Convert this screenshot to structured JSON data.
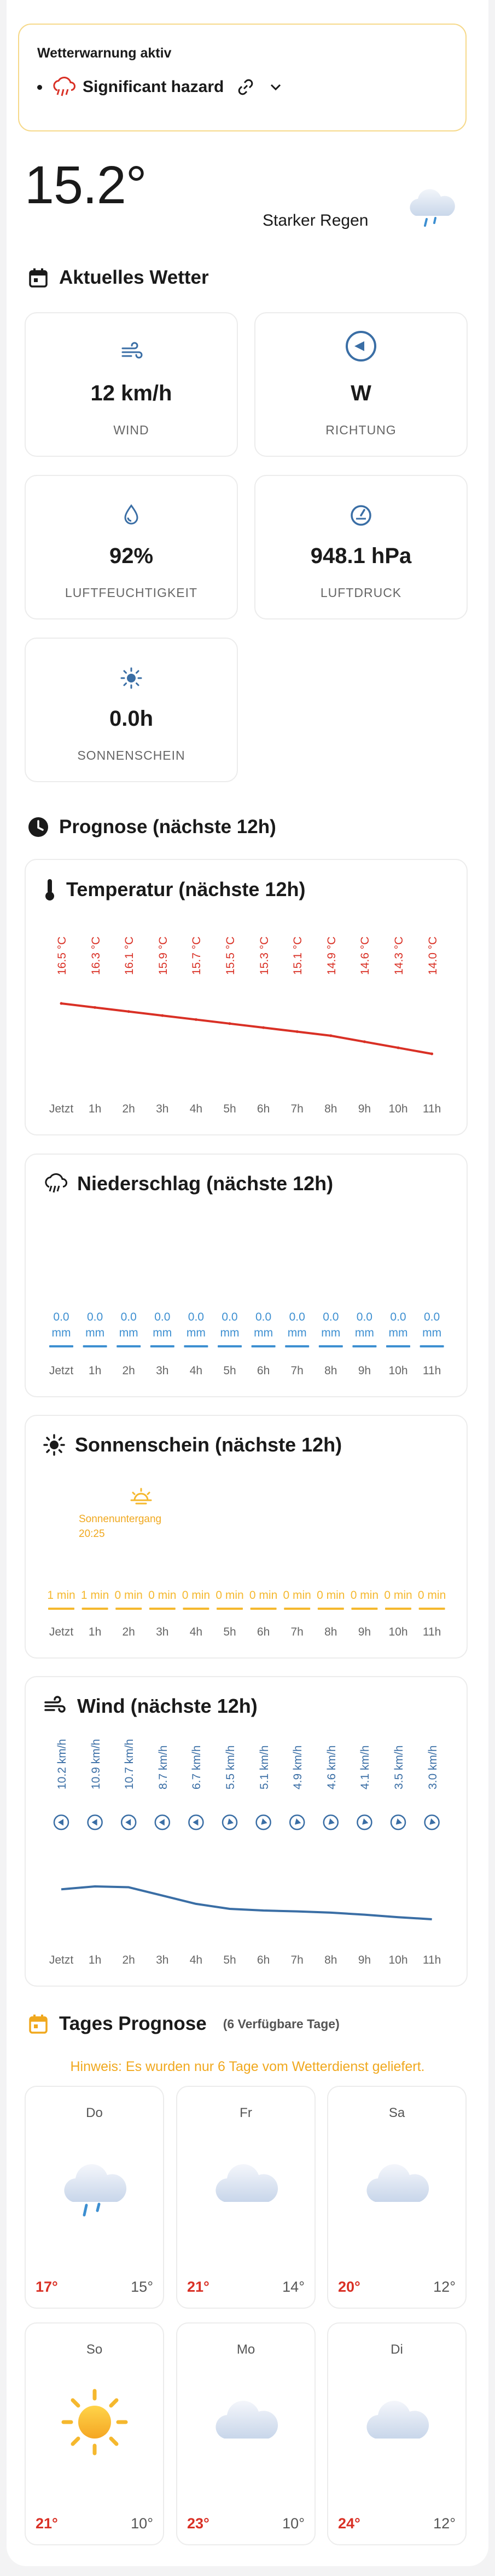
{
  "warning": {
    "title": "Wetterwarnung aktiv",
    "label": "Significant hazard"
  },
  "current": {
    "temperature": "15.2°",
    "condition": "Starker Regen"
  },
  "section_current": "Aktuelles Wetter",
  "stats": {
    "wind": {
      "value": "12 km/h",
      "label": "WIND"
    },
    "direction": {
      "value": "W",
      "label": "RICHTUNG"
    },
    "humidity": {
      "value": "92%",
      "label": "LUFTFEUCHTIGKEIT"
    },
    "pressure": {
      "value": "948.1 hPa",
      "label": "LUFTDRUCK"
    },
    "sunshine": {
      "value": "0.0h",
      "label": "SONNENSCHEIN"
    }
  },
  "section_forecast": "Prognose (nächste 12h)",
  "hours": [
    "Jetzt",
    "1h",
    "2h",
    "3h",
    "4h",
    "5h",
    "6h",
    "7h",
    "8h",
    "9h",
    "10h",
    "11h"
  ],
  "temp_card": {
    "title": "Temperatur (nächste 12h)",
    "labels": [
      "16.5 °C",
      "16.3 °C",
      "16.1 °C",
      "15.9 °C",
      "15.7 °C",
      "15.5 °C",
      "15.3 °C",
      "15.1 °C",
      "14.9 °C",
      "14.6 °C",
      "14.3 °C",
      "14.0 °C"
    ]
  },
  "precip_card": {
    "title": "Niederschlag (nächste 12h)",
    "values": [
      "0.0",
      "0.0",
      "0.0",
      "0.0",
      "0.0",
      "0.0",
      "0.0",
      "0.0",
      "0.0",
      "0.0",
      "0.0",
      "0.0"
    ],
    "unit": "mm"
  },
  "sun_card": {
    "title": "Sonnenschein (nächste 12h)",
    "sunset_label": "Sonnenuntergang",
    "sunset_time": "20:25",
    "labels": [
      "1 min",
      "1 min",
      "0 min",
      "0 min",
      "0 min",
      "0 min",
      "0 min",
      "0 min",
      "0 min",
      "0 min",
      "0 min",
      "0 min"
    ]
  },
  "wind_card": {
    "title": "Wind (nächste 12h)",
    "labels": [
      "10.2 km/h",
      "10.9 km/h",
      "10.7 km/h",
      "8.7 km/h",
      "6.7 km/h",
      "5.5 km/h",
      "5.1 km/h",
      "4.9 km/h",
      "4.6 km/h",
      "4.1 km/h",
      "3.5 km/h",
      "3.0 km/h"
    ]
  },
  "section_daily": "Tages Prognose",
  "daily_sub": "(6 Verfügbare Tage)",
  "daily_note": "Hinweis: Es wurden nur 6 Tage vom Wetterdienst geliefert.",
  "days": [
    {
      "name": "Do",
      "max": "17°",
      "min": "15°",
      "icon": "rain-cloud-icon"
    },
    {
      "name": "Fr",
      "max": "21°",
      "min": "14°",
      "icon": "cloud-icon"
    },
    {
      "name": "Sa",
      "max": "20°",
      "min": "12°",
      "icon": "cloud-icon"
    },
    {
      "name": "So",
      "max": "21°",
      "min": "10°",
      "icon": "sun-icon"
    },
    {
      "name": "Mo",
      "max": "23°",
      "min": "10°",
      "icon": "cloud-icon"
    },
    {
      "name": "Di",
      "max": "24°",
      "min": "12°",
      "icon": "cloud-icon"
    }
  ],
  "chart_data": [
    {
      "type": "line",
      "title": "Temperatur (nächste 12h)",
      "x": [
        "Jetzt",
        "1h",
        "2h",
        "3h",
        "4h",
        "5h",
        "6h",
        "7h",
        "8h",
        "9h",
        "10h",
        "11h"
      ],
      "series": [
        {
          "values": [
            16.5,
            16.3,
            16.1,
            15.9,
            15.7,
            15.5,
            15.3,
            15.1,
            14.9,
            14.6,
            14.3,
            14.0
          ]
        }
      ],
      "unit": "°C",
      "color": "#d93025"
    },
    {
      "type": "bar",
      "title": "Niederschlag (nächste 12h)",
      "categories": [
        "Jetzt",
        "1h",
        "2h",
        "3h",
        "4h",
        "5h",
        "6h",
        "7h",
        "8h",
        "9h",
        "10h",
        "11h"
      ],
      "values": [
        0,
        0,
        0,
        0,
        0,
        0,
        0,
        0,
        0,
        0,
        0,
        0
      ],
      "unit": "mm",
      "color": "#3d8fd1"
    },
    {
      "type": "bar",
      "title": "Sonnenschein (nächste 12h)",
      "categories": [
        "Jetzt",
        "1h",
        "2h",
        "3h",
        "4h",
        "5h",
        "6h",
        "7h",
        "8h",
        "9h",
        "10h",
        "11h"
      ],
      "values": [
        1,
        1,
        0,
        0,
        0,
        0,
        0,
        0,
        0,
        0,
        0,
        0
      ],
      "unit": "min",
      "color": "#f5b82e"
    },
    {
      "type": "line",
      "title": "Wind (nächste 12h)",
      "x": [
        "Jetzt",
        "1h",
        "2h",
        "3h",
        "4h",
        "5h",
        "6h",
        "7h",
        "8h",
        "9h",
        "10h",
        "11h"
      ],
      "series": [
        {
          "values": [
            10.2,
            10.9,
            10.7,
            8.7,
            6.7,
            5.5,
            5.1,
            4.9,
            4.6,
            4.1,
            3.5,
            3.0
          ]
        }
      ],
      "unit": "km/h",
      "color": "#3a6ea5"
    }
  ]
}
